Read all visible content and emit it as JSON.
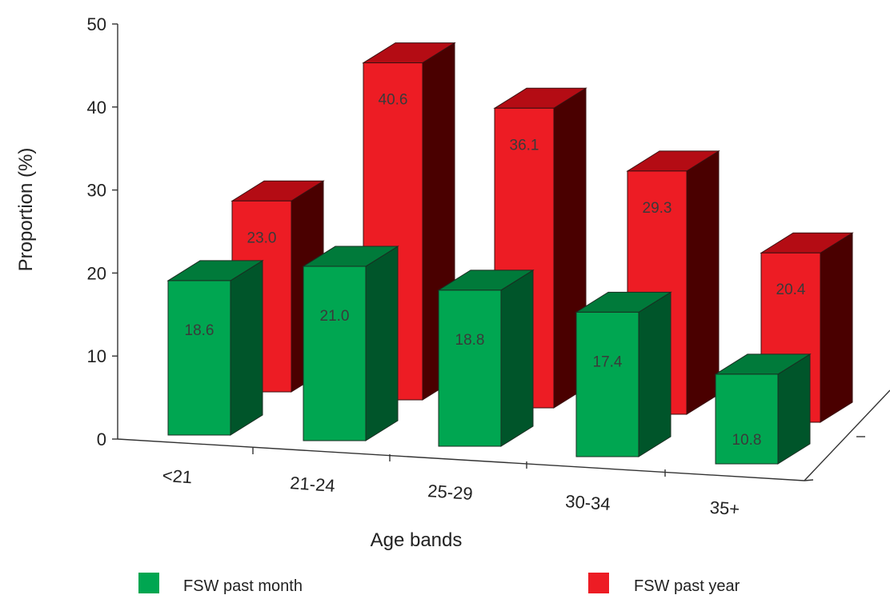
{
  "chart_data": {
    "type": "bar",
    "style": "3d-clustered-depth",
    "categories": [
      "<21",
      "21-24",
      "25-29",
      "30-34",
      "35+"
    ],
    "series": [
      {
        "name": "FSW past month",
        "values": [
          18.6,
          21.0,
          18.8,
          17.4,
          10.8
        ],
        "labels": [
          "18.6",
          "21.0",
          "18.8",
          "17.4",
          "10.8"
        ],
        "color": "#00a651"
      },
      {
        "name": "FSW past year",
        "values": [
          23.0,
          40.6,
          36.1,
          29.3,
          20.4
        ],
        "labels": [
          "23.0",
          "40.6",
          "36.1",
          "29.3",
          "20.4"
        ],
        "color": "#ed1c24"
      }
    ],
    "title": "",
    "xlabel": "Age bands",
    "ylabel": "Proportion (%)",
    "ylim": [
      0,
      50
    ],
    "yticks": [
      0,
      10,
      20,
      30,
      40,
      50
    ],
    "grid": false,
    "legend": "bottom"
  }
}
